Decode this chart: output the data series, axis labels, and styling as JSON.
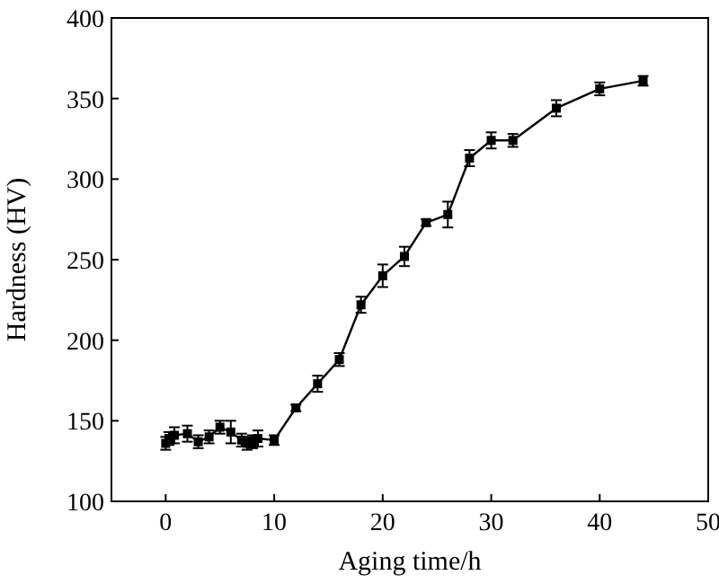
{
  "chart_data": {
    "type": "line",
    "xlabel": "Aging time/h",
    "ylabel": "Hardness (HV)",
    "x": [
      0,
      0.3,
      0.8,
      2,
      3,
      4,
      5,
      6,
      7,
      7.5,
      8,
      8.5,
      10,
      12,
      14,
      16,
      18,
      20,
      22,
      24,
      26,
      28,
      30,
      32,
      36,
      40,
      44
    ],
    "series": [
      {
        "color": "#000000",
        "values": [
          136,
          139,
          141,
          142,
          137,
          140,
          146,
          143,
          138,
          136,
          137,
          139,
          138,
          158,
          173,
          188,
          222,
          240,
          252,
          273,
          278,
          313,
          324,
          324,
          344,
          356,
          361
        ],
        "errors": [
          4,
          4,
          5,
          5,
          4,
          4,
          4,
          7,
          4,
          4,
          4,
          5,
          3,
          2,
          5,
          4,
          5,
          7,
          6,
          2,
          8,
          5,
          5,
          4,
          5,
          4,
          3
        ]
      }
    ],
    "xlim": [
      -5,
      50
    ],
    "ylim": [
      100,
      400
    ],
    "xticks": [
      0,
      10,
      20,
      30,
      40,
      50
    ],
    "yticks": [
      100,
      150,
      200,
      250,
      300,
      350,
      400
    ],
    "marker": "square",
    "grid": false
  }
}
